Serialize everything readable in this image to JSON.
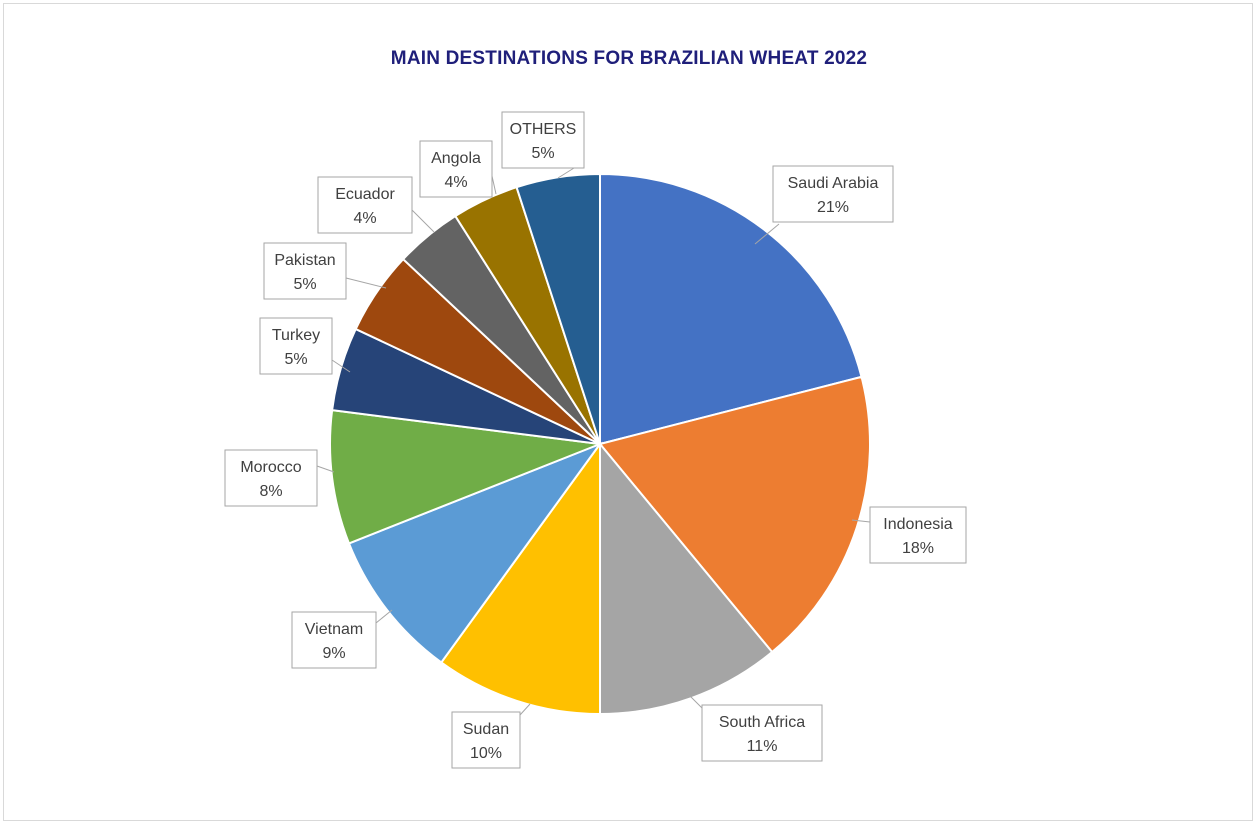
{
  "chart_data": {
    "type": "pie",
    "title": "MAIN DESTINATIONS FOR BRAZILIAN WHEAT 2022",
    "slices": [
      {
        "label": "Saudi Arabia",
        "value": 21,
        "display": "21%",
        "color": "#4472c4"
      },
      {
        "label": "Indonesia",
        "value": 18,
        "display": "18%",
        "color": "#ed7d31"
      },
      {
        "label": "South Africa",
        "value": 11,
        "display": "11%",
        "color": "#a5a5a5"
      },
      {
        "label": "Sudan",
        "value": 10,
        "display": "10%",
        "color": "#ffc000"
      },
      {
        "label": "Vietnam",
        "value": 9,
        "display": "9%",
        "color": "#5b9bd5"
      },
      {
        "label": "Morocco",
        "value": 8,
        "display": "8%",
        "color": "#70ad47"
      },
      {
        "label": "Turkey",
        "value": 5,
        "display": "5%",
        "color": "#264478"
      },
      {
        "label": "Pakistan",
        "value": 5,
        "display": "5%",
        "color": "#9e480e"
      },
      {
        "label": "Ecuador",
        "value": 4,
        "display": "4%",
        "color": "#636363"
      },
      {
        "label": "Angola",
        "value": 4,
        "display": "4%",
        "color": "#997300"
      },
      {
        "label": "OTHERS",
        "value": 5,
        "display": "5%",
        "color": "#255e91"
      }
    ],
    "legend": "none"
  }
}
